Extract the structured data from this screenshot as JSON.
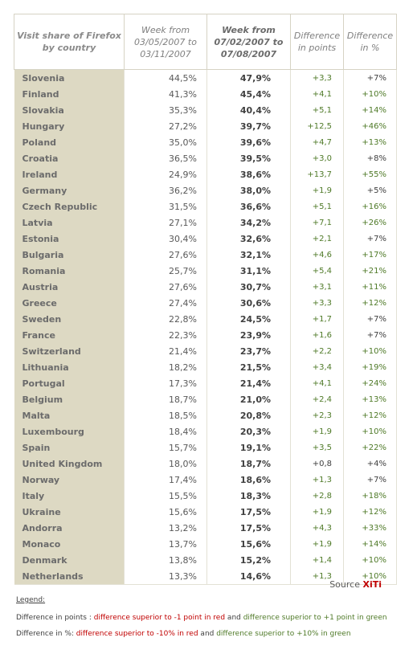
{
  "header": {
    "country": "Visit share of Firefox by country",
    "week1": "Week from 03/05/2007 to 03/11/2007",
    "week2": "Week from 07/02/2007 to 07/08/2007",
    "diff_points": "Difference in points",
    "diff_pct": "Difference in %"
  },
  "rows": [
    {
      "country": "Slovenia",
      "w1": "44,5%",
      "w2": "47,9%",
      "pts": "+3,3",
      "pct": "+7%"
    },
    {
      "country": "Finland",
      "w1": "41,3%",
      "w2": "45,4%",
      "pts": "+4,1",
      "pct": "+10%"
    },
    {
      "country": "Slovakia",
      "w1": "35,3%",
      "w2": "40,4%",
      "pts": "+5,1",
      "pct": "+14%"
    },
    {
      "country": "Hungary",
      "w1": "27,2%",
      "w2": "39,7%",
      "pts": "+12,5",
      "pct": "+46%"
    },
    {
      "country": "Poland",
      "w1": "35,0%",
      "w2": "39,6%",
      "pts": "+4,7",
      "pct": "+13%"
    },
    {
      "country": "Croatia",
      "w1": "36,5%",
      "w2": "39,5%",
      "pts": "+3,0",
      "pct": "+8%"
    },
    {
      "country": "Ireland",
      "w1": "24,9%",
      "w2": "38,6%",
      "pts": "+13,7",
      "pct": "+55%"
    },
    {
      "country": "Germany",
      "w1": "36,2%",
      "w2": "38,0%",
      "pts": "+1,9",
      "pct": "+5%"
    },
    {
      "country": "Czech Republic",
      "w1": "31,5%",
      "w2": "36,6%",
      "pts": "+5,1",
      "pct": "+16%"
    },
    {
      "country": "Latvia",
      "w1": "27,1%",
      "w2": "34,2%",
      "pts": "+7,1",
      "pct": "+26%"
    },
    {
      "country": "Estonia",
      "w1": "30,4%",
      "w2": "32,6%",
      "pts": "+2,1",
      "pct": "+7%"
    },
    {
      "country": "Bulgaria",
      "w1": "27,6%",
      "w2": "32,1%",
      "pts": "+4,6",
      "pct": "+17%"
    },
    {
      "country": "Romania",
      "w1": "25,7%",
      "w2": "31,1%",
      "pts": "+5,4",
      "pct": "+21%"
    },
    {
      "country": "Austria",
      "w1": "27,6%",
      "w2": "30,7%",
      "pts": "+3,1",
      "pct": "+11%"
    },
    {
      "country": "Greece",
      "w1": "27,4%",
      "w2": "30,6%",
      "pts": "+3,3",
      "pct": "+12%"
    },
    {
      "country": "Sweden",
      "w1": "22,8%",
      "w2": "24,5%",
      "pts": "+1,7",
      "pct": "+7%"
    },
    {
      "country": "France",
      "w1": "22,3%",
      "w2": "23,9%",
      "pts": "+1,6",
      "pct": "+7%"
    },
    {
      "country": "Switzerland",
      "w1": "21,4%",
      "w2": "23,7%",
      "pts": "+2,2",
      "pct": "+10%"
    },
    {
      "country": "Lithuania",
      "w1": "18,2%",
      "w2": "21,5%",
      "pts": "+3,4",
      "pct": "+19%"
    },
    {
      "country": "Portugal",
      "w1": "17,3%",
      "w2": "21,4%",
      "pts": "+4,1",
      "pct": "+24%"
    },
    {
      "country": "Belgium",
      "w1": "18,7%",
      "w2": "21,0%",
      "pts": "+2,4",
      "pct": "+13%"
    },
    {
      "country": "Malta",
      "w1": "18,5%",
      "w2": "20,8%",
      "pts": "+2,3",
      "pct": "+12%"
    },
    {
      "country": "Luxembourg",
      "w1": "18,4%",
      "w2": "20,3%",
      "pts": "+1,9",
      "pct": "+10%"
    },
    {
      "country": "Spain",
      "w1": "15,7%",
      "w2": "19,1%",
      "pts": "+3,5",
      "pct": "+22%"
    },
    {
      "country": "United Kingdom",
      "w1": "18,0%",
      "w2": "18,7%",
      "pts": "+0,8",
      "pct": "+4%"
    },
    {
      "country": "Norway",
      "w1": "17,4%",
      "w2": "18,6%",
      "pts": "+1,3",
      "pct": "+7%"
    },
    {
      "country": "Italy",
      "w1": "15,5%",
      "w2": "18,3%",
      "pts": "+2,8",
      "pct": "+18%"
    },
    {
      "country": "Ukraine",
      "w1": "15,6%",
      "w2": "17,5%",
      "pts": "+1,9",
      "pct": "+12%"
    },
    {
      "country": "Andorra",
      "w1": "13,2%",
      "w2": "17,5%",
      "pts": "+4,3",
      "pct": "+33%"
    },
    {
      "country": "Monaco",
      "w1": "13,7%",
      "w2": "15,6%",
      "pts": "+1,9",
      "pct": "+14%"
    },
    {
      "country": "Denmark",
      "w1": "13,8%",
      "w2": "15,2%",
      "pts": "+1,4",
      "pct": "+10%"
    },
    {
      "country": "Netherlands",
      "w1": "13,3%",
      "w2": "14,6%",
      "pts": "+1,3",
      "pct": "+10%"
    }
  ],
  "source": {
    "label": "Source",
    "brand": "XiTi"
  },
  "legend": {
    "title": "Legend:",
    "line1_prefix": "Difference in points : ",
    "line1_red": "difference superior to -1 point in red",
    "line1_and": " and ",
    "line1_green": "difference superior to +1 point in green",
    "line2_prefix": "Difference in %: ",
    "line2_red": "difference superior to -10% in red",
    "line2_and": " and ",
    "line2_green": "difference superior to +10% in green"
  },
  "colors": {
    "positive": "#4f7a28",
    "negative": "#c00000",
    "neutral": "#404040",
    "country_bg": "#ddd9c3"
  }
}
